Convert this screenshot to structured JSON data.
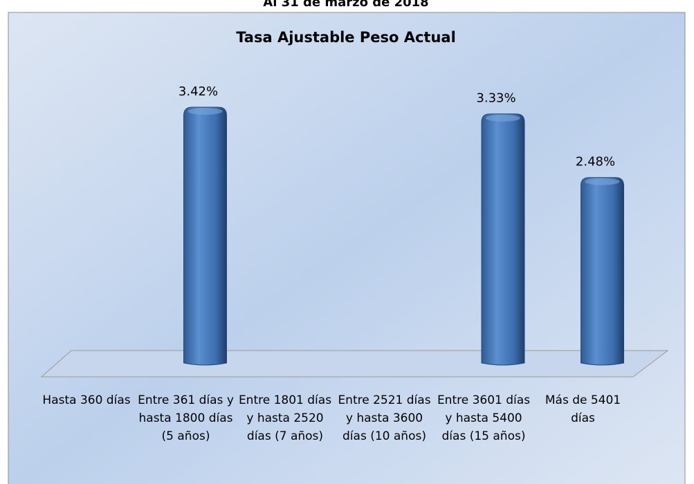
{
  "chart_data": {
    "type": "bar",
    "header": "Al 31 de marzo de 2018",
    "title": "Tasa Ajustable Peso Actual",
    "categories": [
      "Hasta 360 días",
      "Entre 361 días y hasta 1800 días (5 años)",
      "Entre 1801 días y hasta 2520 días (7 años)",
      "Entre 2521 días y hasta 3600 días (10 años)",
      "Entre 3601 días y hasta 5400 días (15 años)",
      "Más de 5401 días"
    ],
    "values": [
      null,
      3.42,
      null,
      null,
      3.33,
      2.48
    ],
    "value_labels": [
      null,
      "3.42%",
      null,
      null,
      "3.33%",
      "2.48%"
    ],
    "color": "#4a7ebb"
  }
}
